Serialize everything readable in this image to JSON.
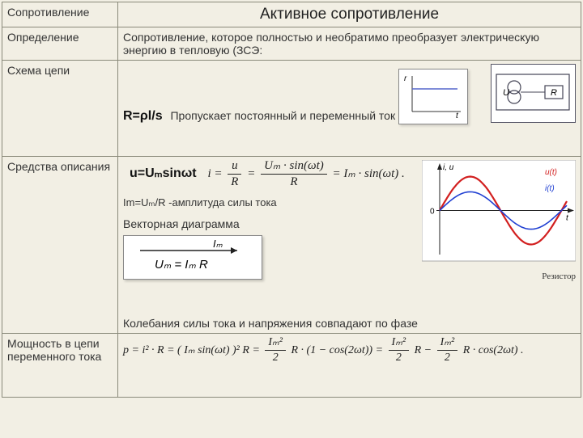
{
  "header": {
    "col1": "Сопротивление",
    "col2": "Активное сопротивление"
  },
  "rows": {
    "definition": {
      "label": "Определение",
      "text": "Сопротивление, которое полностью и необратимо преобразует электрическую энергию в тепловую (ЗСЭ:"
    },
    "schema": {
      "label": "Схема цепи",
      "formula": "R=ρl/s",
      "note": "Пропускает постоянный и переменный ток",
      "circuit": {
        "u_label": "U",
        "r_label": "R"
      },
      "mini_graph": {
        "xlabel": "t",
        "ylabel": "r",
        "line_color": "#5566cc"
      }
    },
    "description": {
      "label": "Средства описания",
      "voltage_formula": "u=Uₘsinωt",
      "current_eq": {
        "lhs": "i",
        "frac1": {
          "n": "u",
          "d": "R"
        },
        "frac2": {
          "n": "Uₘ · sin(ωt)",
          "d": "R"
        },
        "rhs": "Iₘ · sin(ωt) ."
      },
      "amplitude": "Im=Uₘ/R  -амплитуда силы тока",
      "vector_title": "Векторная диаграмма",
      "vector_eq": {
        "arrow_label": "Iₘ",
        "eq": "Uₘ = Iₘ R"
      },
      "phase_note": "Колебания силы тока и напряжения совпадают по фазе",
      "wave_chart": {
        "type": "line",
        "width": 190,
        "height": 125,
        "background_color": "#ffffff",
        "axis_color": "#222222",
        "xlabel": "t",
        "ylabel": "i, u",
        "u_label": "u(t)",
        "i_label": "i(t)",
        "bottom_label": "Резистор",
        "u_color": "#d21f1f",
        "i_color": "#1f3fd2",
        "line_width_u": 2.2,
        "line_width_i": 1.6,
        "x_range": [
          0,
          6.6
        ],
        "amp_u": 1.0,
        "amp_i": 0.55
      }
    },
    "power": {
      "label": "Мощность в цепи переменного тока",
      "eq": {
        "lhs": "p = i² · R = ( Iₘ sin(ωt) )² R",
        "frac1": {
          "n": "Iₘ²",
          "d": "2"
        },
        "mid": "R · (1 − cos(2ωt))",
        "frac2": {
          "n": "Iₘ²",
          "d": "2"
        },
        "mid2": "R −",
        "frac3": {
          "n": "Iₘ²",
          "d": "2"
        },
        "tail": "R · cos(2ωt) ."
      }
    }
  }
}
